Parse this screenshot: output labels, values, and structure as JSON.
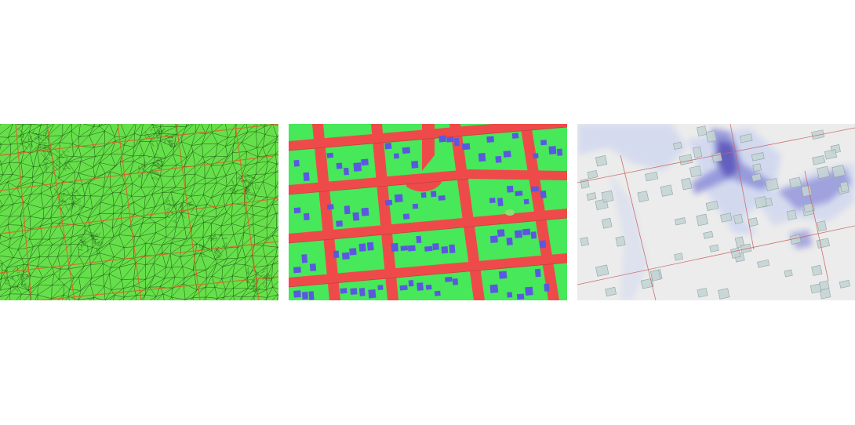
{
  "figure": {
    "panels": [
      {
        "id": "mesh",
        "kind": "triangulated-computational-mesh",
        "colors": {
          "background": "#66e04a",
          "mesh_lines": "#1f5a16",
          "breaklines": "#e0602a"
        }
      },
      {
        "id": "landuse",
        "kind": "land-cover-classification-map",
        "colors": {
          "pervious": "#47e85a",
          "roads": "#ef4a4a",
          "buildings": "#5a58e0",
          "road_edges": "#c24040"
        }
      },
      {
        "id": "flood",
        "kind": "flood-depth-map-over-hillshade",
        "colors": {
          "hillshade": "#ececec",
          "buildings": "#c4d3d3",
          "building_outline": "#8fa3a3",
          "flood_shallow": "#c2cdf1",
          "flood_mid": "#8d8fd8",
          "flood_deep": "#5f59bd",
          "road_line": "#c86464"
        }
      }
    ]
  }
}
